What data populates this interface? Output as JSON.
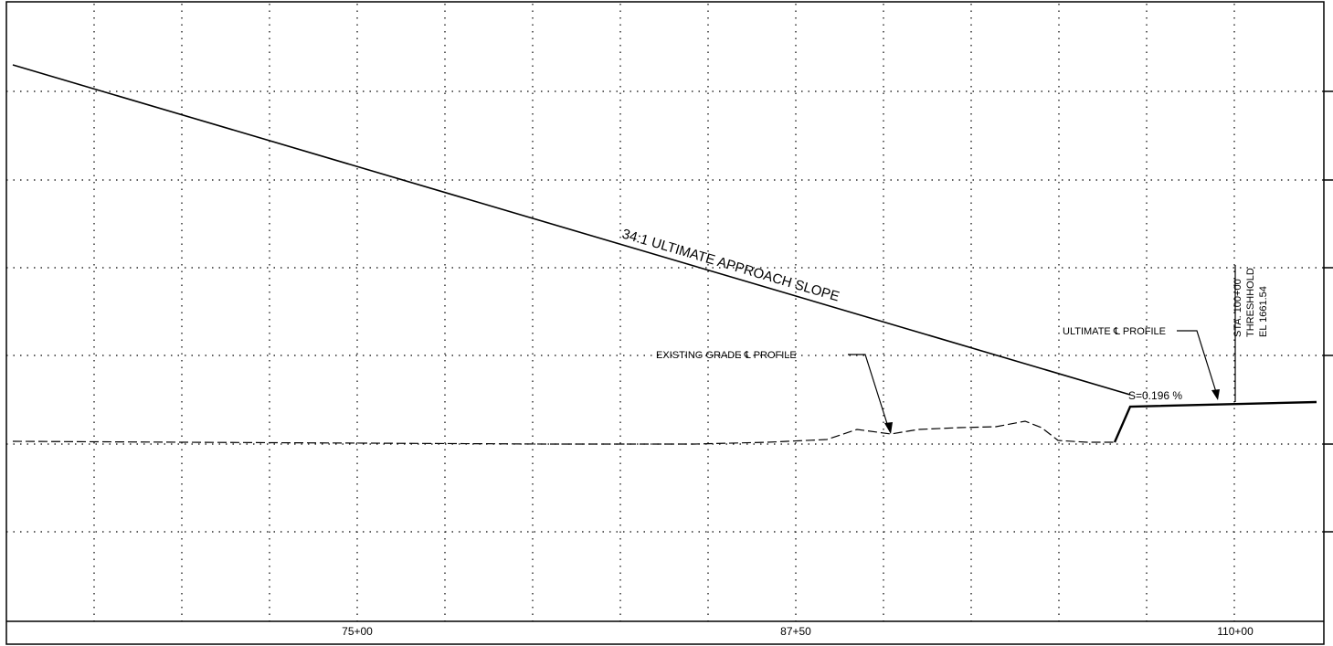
{
  "drawing": {
    "approach_slope_label": "34:1 ULTIMATE APPROACH SLOPE",
    "existing_grade_label": "EXISTING GRADE ℄ PROFILE",
    "ultimate_profile_label": "ULTIMATE ℄ PROFILE",
    "slope_label": "S=0.196 %",
    "threshold": {
      "station": "STA. 100+00",
      "name": "THRESHHOLD",
      "elevation": "EL 1661.54"
    },
    "x_tick_labels": [
      "75+00",
      "87+50",
      "110+00"
    ]
  }
}
